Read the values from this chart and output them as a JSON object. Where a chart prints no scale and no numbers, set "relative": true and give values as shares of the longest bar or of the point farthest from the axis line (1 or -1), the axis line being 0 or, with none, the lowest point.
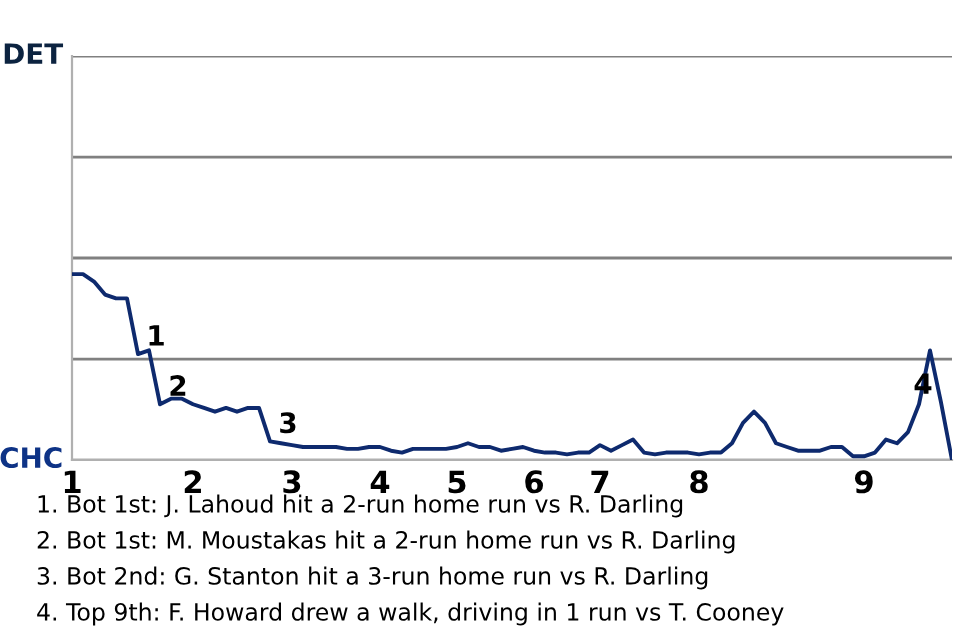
{
  "chart_data": {
    "type": "line",
    "relative": true,
    "categories": [
      "1",
      null,
      null,
      null,
      null,
      null,
      null,
      null,
      null,
      null,
      null,
      "2",
      null,
      null,
      null,
      null,
      null,
      null,
      null,
      null,
      "3",
      null,
      null,
      null,
      null,
      null,
      null,
      null,
      "4",
      null,
      null,
      null,
      null,
      null,
      null,
      "5",
      null,
      null,
      null,
      null,
      null,
      null,
      "6",
      null,
      null,
      null,
      null,
      null,
      "7",
      null,
      null,
      null,
      null,
      null,
      null,
      null,
      null,
      "8",
      null,
      null,
      null,
      null,
      null,
      null,
      null,
      null,
      null,
      null,
      null,
      null,
      null,
      null,
      "9",
      null,
      null,
      null,
      null,
      null,
      null,
      null,
      null
    ],
    "series": [
      {
        "color": "#0e2a6e",
        "values": [
          1,
          1,
          0.96,
          0.89,
          0.87,
          0.87,
          0.57,
          0.59,
          0.3,
          0.33,
          0.33,
          0.3,
          0.28,
          0.26,
          0.28,
          0.26,
          0.28,
          0.28,
          0.1,
          0.09,
          0.08,
          0.07,
          0.07,
          0.07,
          0.07,
          0.06,
          0.06,
          0.07,
          0.07,
          0.05,
          0.04,
          0.06,
          0.06,
          0.06,
          0.06,
          0.07,
          0.09,
          0.07,
          0.07,
          0.05,
          0.06,
          0.07,
          0.05,
          0.04,
          0.04,
          0.03,
          0.04,
          0.04,
          0.08,
          0.05,
          0.08,
          0.11,
          0.04,
          0.03,
          0.04,
          0.04,
          0.04,
          0.03,
          0.04,
          0.04,
          0.09,
          0.2,
          0.26,
          0.2,
          0.09,
          0.07,
          0.05,
          0.05,
          0.05,
          0.07,
          0.07,
          0.02,
          0.02,
          0.04,
          0.11,
          0.09,
          0.15,
          0.3,
          0.59,
          0.31,
          0
        ]
      }
    ],
    "ref_lines": [
      {
        "axis": "y",
        "value": 0,
        "label": "CHC",
        "color": "#b0b0b0"
      },
      {
        "axis": "y",
        "value": 0.543,
        "label": null,
        "color": "#808080"
      },
      {
        "axis": "y",
        "value": 1.087,
        "label": null,
        "color": "#808080"
      },
      {
        "axis": "y",
        "value": 1.63,
        "label": null,
        "color": "#808080"
      },
      {
        "axis": "y",
        "value": 2.174,
        "label": "DET",
        "color": "#808080"
      }
    ],
    "annotations": [
      {
        "text": "1",
        "y": 0.57
      },
      {
        "text": "2",
        "y": 0.3
      },
      {
        "text": "3",
        "y": 0.1
      },
      {
        "text": "4",
        "y": 0.31
      },
      "1. Bot 1st: J. Lahoud hit a 2-run home run vs R. Darling",
      "2. Bot 1st: M. Moustakas hit a 2-run home run vs R. Darling",
      "3. Bot 2nd: G. Stanton hit a 3-run home run vs R. Darling",
      "4. Top 9th: F. Howard drew a walk, driving in 1 run vs T. Cooney"
    ]
  }
}
